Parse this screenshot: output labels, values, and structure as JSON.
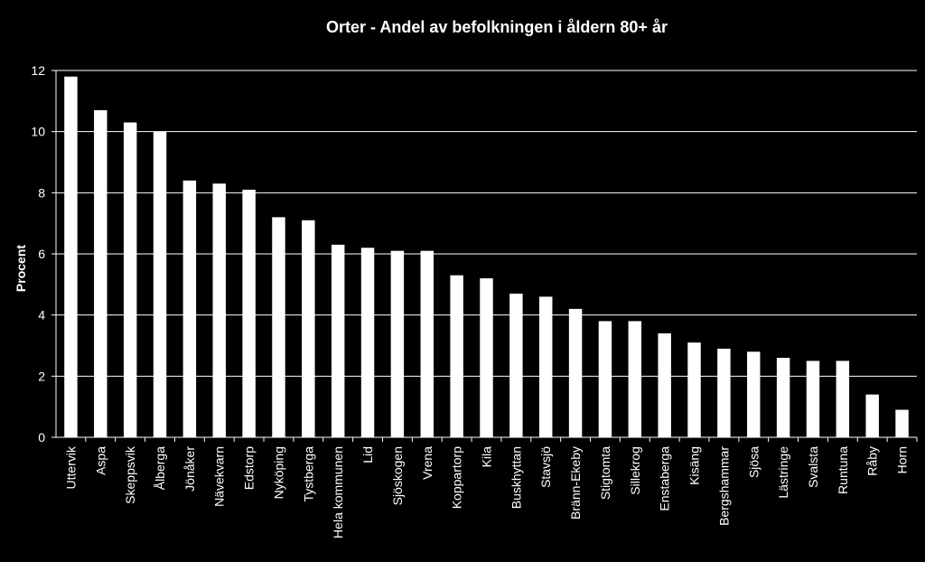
{
  "chart_data": {
    "type": "bar",
    "title": "Orter - Andel av befolkningen i åldern 80+ år",
    "xlabel": "",
    "ylabel": "Procent",
    "ylim": [
      0,
      12
    ],
    "yticks": [
      0,
      2,
      4,
      6,
      8,
      10,
      12
    ],
    "grid": true,
    "categories": [
      "Uttervik",
      "Aspa",
      "Skeppsvik",
      "Ålberga",
      "Jönåker",
      "Nävekvarn",
      "Edstorp",
      "Nyköping",
      "Tystberga",
      "Hela kommunen",
      "Lid",
      "Sjöskogen",
      "Vrena",
      "Koppartorp",
      "Kila",
      "Buskhyttan",
      "Stavsjö",
      "Bränn-Ekeby",
      "Stigtomta",
      "Sillekrog",
      "Enstaberga",
      "Kisäng",
      "Bergshammar",
      "Sjösa",
      "Lästringe",
      "Svalsta",
      "Runtuna",
      "Råby",
      "Horn"
    ],
    "values": [
      11.8,
      10.7,
      10.3,
      10.0,
      8.4,
      8.3,
      8.1,
      7.2,
      7.1,
      6.3,
      6.2,
      6.1,
      6.1,
      5.3,
      5.2,
      4.7,
      4.6,
      4.2,
      3.8,
      3.8,
      3.4,
      3.1,
      2.9,
      2.8,
      2.6,
      2.5,
      2.5,
      1.4,
      0.9
    ],
    "colors": {
      "background": "#000000",
      "bar": "#ffffff",
      "grid": "#ffffff",
      "text": "#ffffff"
    }
  }
}
